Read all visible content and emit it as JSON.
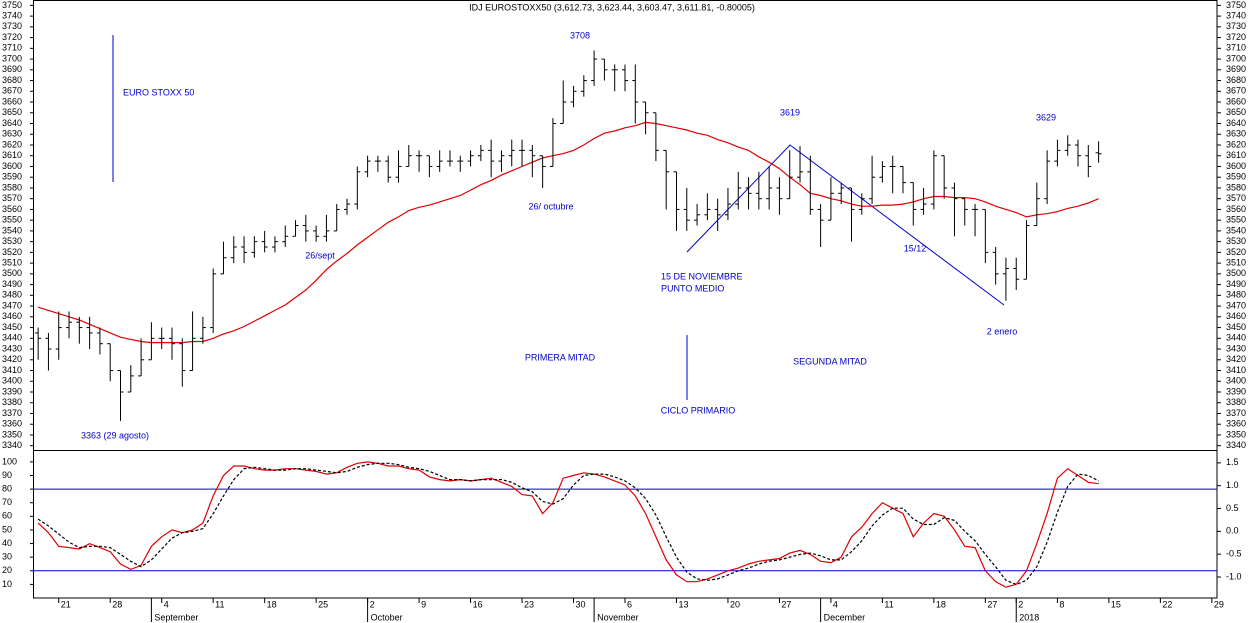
{
  "chart_data": [
    {
      "type": "ohlc",
      "title": "IDJ EUROSTOXX50 (3,612.73, 3,623.44, 3,603.47, 3,611.81, -0.80005)",
      "categories": [
        null,
        null,
        "21",
        null,
        null,
        null,
        null,
        "28",
        null,
        null,
        null,
        null,
        "4",
        null,
        null,
        null,
        null,
        "11",
        null,
        null,
        null,
        null,
        "18",
        null,
        null,
        null,
        null,
        "25",
        null,
        null,
        null,
        null,
        "2",
        null,
        null,
        null,
        null,
        "9",
        null,
        null,
        null,
        null,
        "16",
        null,
        null,
        null,
        null,
        "23",
        null,
        null,
        null,
        null,
        "30",
        null,
        null,
        null,
        null,
        "6",
        null,
        null,
        null,
        null,
        "13",
        null,
        null,
        null,
        null,
        "20",
        null,
        null,
        null,
        null,
        "27",
        null,
        null,
        null,
        null,
        "4",
        null,
        null,
        null,
        null,
        "11",
        null,
        null,
        null,
        null,
        "18",
        null,
        null,
        null,
        null,
        "27",
        null,
        null,
        "2",
        null,
        null,
        null,
        "8",
        null,
        null,
        null,
        null,
        "15",
        null,
        null,
        null,
        null,
        "22",
        null,
        null,
        null,
        null,
        "29"
      ],
      "month_labels": [
        null,
        null,
        null,
        null,
        null,
        null,
        null,
        null,
        null,
        null,
        null,
        "September",
        null,
        null,
        null,
        null,
        null,
        null,
        null,
        null,
        null,
        null,
        null,
        null,
        null,
        null,
        null,
        null,
        null,
        null,
        null,
        null,
        "October",
        null,
        null,
        null,
        null,
        null,
        null,
        null,
        null,
        null,
        null,
        null,
        null,
        null,
        null,
        null,
        null,
        null,
        null,
        null,
        null,
        null,
        "November",
        null,
        null,
        null,
        null,
        null,
        null,
        null,
        null,
        null,
        null,
        null,
        null,
        null,
        null,
        null,
        null,
        null,
        null,
        null,
        null,
        null,
        "December",
        null,
        null,
        null,
        null,
        null,
        null,
        null,
        null,
        null,
        null,
        null,
        null,
        null,
        null,
        null,
        null,
        null,
        null,
        "2018",
        null,
        null,
        null,
        null,
        null,
        null,
        null,
        null,
        null,
        null,
        null,
        null,
        null,
        null,
        null,
        null,
        null,
        null,
        null
      ],
      "open": [
        3445,
        3440,
        3430,
        3450,
        3455,
        3450,
        3445,
        3435,
        3410,
        3390,
        3405,
        3420,
        3440,
        3440,
        3435,
        3410,
        3440,
        3450,
        3500,
        3515,
        3525,
        3520,
        3530,
        3525,
        3530,
        3535,
        3545,
        3540,
        3535,
        3540,
        3560,
        3565,
        3595,
        3605,
        3605,
        3590,
        3600,
        3610,
        3610,
        3600,
        3605,
        3605,
        3605,
        3610,
        3615,
        3605,
        3610,
        3615,
        3615,
        3610,
        3600,
        3640,
        3660,
        3670,
        3680,
        3700,
        3690,
        3690,
        3680,
        3660,
        3650,
        3615,
        3595,
        3560,
        3550,
        3555,
        3560,
        3555,
        3565,
        3580,
        3575,
        3570,
        3580,
        3570,
        3590,
        3595,
        3560,
        3550,
        3575,
        3580,
        3560,
        3570,
        3590,
        3600,
        3600,
        3585,
        3560,
        3565,
        3610,
        3580,
        3570,
        3560,
        3560,
        3520,
        3500,
        3505,
        3495,
        3545,
        3570,
        3605,
        3615,
        3620,
        3610,
        3612.73,
        null,
        null,
        null,
        null,
        null,
        null,
        null,
        null,
        null,
        null,
        null
      ],
      "high": [
        3450,
        3445,
        3465,
        3465,
        3460,
        3460,
        3450,
        3435,
        3410,
        3415,
        3440,
        3455,
        3450,
        3450,
        3440,
        3465,
        3460,
        3505,
        3530,
        3535,
        3535,
        3535,
        3540,
        3535,
        3545,
        3550,
        3555,
        3545,
        3555,
        3565,
        3570,
        3600,
        3610,
        3610,
        3610,
        3615,
        3620,
        3615,
        3610,
        3615,
        3615,
        3610,
        3615,
        3620,
        3625,
        3615,
        3625,
        3625,
        3620,
        3610,
        3645,
        3680,
        3675,
        3685,
        3708,
        3700,
        3695,
        3695,
        3695,
        3660,
        3650,
        3615,
        3595,
        3580,
        3565,
        3575,
        3570,
        3580,
        3595,
        3590,
        3595,
        3600,
        3590,
        3615,
        3619,
        3610,
        3565,
        3590,
        3585,
        3580,
        3575,
        3610,
        3605,
        3610,
        3600,
        3585,
        3580,
        3615,
        3610,
        3585,
        3570,
        3565,
        3560,
        3525,
        3515,
        3515,
        3550,
        3585,
        3615,
        3625,
        3629,
        3625,
        3620,
        3623.44,
        null,
        null,
        null,
        null,
        null,
        null,
        null,
        null,
        null,
        null,
        null
      ],
      "low": [
        3420,
        3410,
        3420,
        3440,
        3435,
        3430,
        3425,
        3400,
        3363,
        3390,
        3405,
        3420,
        3430,
        3420,
        3395,
        3410,
        3435,
        3445,
        3500,
        3510,
        3510,
        3515,
        3520,
        3520,
        3525,
        3535,
        3530,
        3530,
        3530,
        3540,
        3555,
        3560,
        3590,
        3595,
        3585,
        3585,
        3600,
        3595,
        3590,
        3595,
        3600,
        3595,
        3600,
        3605,
        3590,
        3595,
        3600,
        3600,
        3590,
        3580,
        3600,
        3640,
        3655,
        3665,
        3675,
        3680,
        3670,
        3670,
        3640,
        3630,
        3605,
        3560,
        3540,
        3540,
        3545,
        3550,
        3540,
        3550,
        3560,
        3560,
        3560,
        3560,
        3555,
        3570,
        3585,
        3555,
        3525,
        3550,
        3565,
        3530,
        3555,
        3565,
        3585,
        3575,
        3575,
        3545,
        3555,
        3560,
        3570,
        3535,
        3545,
        3535,
        3510,
        3490,
        3475,
        3485,
        3495,
        3545,
        3565,
        3600,
        3610,
        3600,
        3590,
        3603.47,
        null,
        null,
        null,
        null,
        null,
        null,
        null,
        null,
        null,
        null,
        null
      ],
      "close": [
        3440,
        3430,
        3450,
        3455,
        3450,
        3445,
        3435,
        3410,
        3390,
        3405,
        3420,
        3440,
        3440,
        3435,
        3410,
        3440,
        3450,
        3500,
        3515,
        3525,
        3520,
        3530,
        3525,
        3530,
        3535,
        3545,
        3540,
        3535,
        3540,
        3560,
        3565,
        3595,
        3605,
        3605,
        3590,
        3600,
        3610,
        3610,
        3600,
        3605,
        3605,
        3605,
        3610,
        3615,
        3605,
        3610,
        3615,
        3615,
        3610,
        3600,
        3640,
        3660,
        3670,
        3680,
        3700,
        3690,
        3690,
        3680,
        3660,
        3650,
        3615,
        3595,
        3560,
        3550,
        3555,
        3560,
        3555,
        3565,
        3580,
        3575,
        3570,
        3580,
        3570,
        3590,
        3595,
        3560,
        3550,
        3575,
        3580,
        3560,
        3570,
        3590,
        3600,
        3600,
        3585,
        3560,
        3565,
        3610,
        3580,
        3570,
        3560,
        3560,
        3520,
        3500,
        3505,
        3495,
        3545,
        3570,
        3605,
        3615,
        3620,
        3610,
        3600,
        3611.81,
        null,
        null,
        null,
        null,
        null,
        null,
        null,
        null,
        null,
        null,
        null
      ],
      "bar_color": "#000000",
      "ma": {
        "color": "#e00000",
        "values": [
          3469,
          3466,
          3463,
          3460,
          3457,
          3453,
          3449,
          3445,
          3441,
          3439,
          3437,
          3436,
          3436,
          3436,
          3436,
          3437,
          3437,
          3440,
          3444,
          3447,
          3451,
          3456,
          3461,
          3466,
          3471,
          3478,
          3485,
          3494,
          3504,
          3512,
          3519,
          3527,
          3534,
          3541,
          3548,
          3553,
          3559,
          3562,
          3564,
          3567,
          3570,
          3573,
          3578,
          3583,
          3587,
          3592,
          3596,
          3600,
          3604,
          3608,
          3610,
          3612,
          3615,
          3620,
          3626,
          3631,
          3633,
          3636,
          3638,
          3641,
          3640,
          3638,
          3636,
          3634,
          3631,
          3629,
          3625,
          3622,
          3618,
          3615,
          3609,
          3604,
          3598,
          3590,
          3583,
          3575,
          3573,
          3570,
          3568,
          3565,
          3563,
          3563,
          3564,
          3564,
          3565,
          3567,
          3570,
          3572,
          3572,
          3571,
          3571,
          3570,
          3567,
          3563,
          3560,
          3557,
          3553,
          3555,
          3556,
          3558,
          3561,
          3563,
          3566,
          3570,
          null,
          null,
          null,
          null,
          null,
          null,
          null,
          null,
          null,
          null,
          null
        ]
      },
      "ylim": [
        3336,
        3755
      ],
      "yticks": [
        3340,
        3350,
        3360,
        3370,
        3380,
        3390,
        3400,
        3410,
        3420,
        3430,
        3440,
        3450,
        3460,
        3470,
        3480,
        3490,
        3500,
        3510,
        3520,
        3530,
        3540,
        3550,
        3560,
        3570,
        3580,
        3590,
        3600,
        3610,
        3620,
        3630,
        3640,
        3650,
        3660,
        3670,
        3680,
        3690,
        3700,
        3710,
        3720,
        3730,
        3740,
        3750
      ],
      "annotations": [
        "EURO STOXX 50",
        "3708",
        "3619",
        "3629",
        "26/ octubre",
        "26/sept",
        "15 DE NOVIEMBRE",
        "PUNTO MEDIO",
        "15/12",
        "2 enero",
        "PRIMERA MITAD",
        "SEGUNDA MITAD",
        "CICLO PRIMARIO",
        "3363 (29 agosto)"
      ],
      "annotation_color": "#0000cc"
    },
    {
      "type": "line",
      "series": [
        {
          "color": "#e00000",
          "dashed": false,
          "values": [
            55,
            48,
            38,
            37,
            36,
            40,
            37,
            34,
            25,
            21,
            24,
            38,
            45,
            50,
            48,
            50,
            55,
            75,
            90,
            97,
            97,
            95,
            94,
            94,
            95,
            95,
            94,
            93,
            91,
            92,
            96,
            99,
            100,
            99,
            97,
            97,
            95,
            94,
            89,
            87,
            86,
            87,
            86,
            87,
            88,
            85,
            82,
            76,
            75,
            62,
            70,
            88,
            90,
            92,
            91,
            89,
            86,
            83,
            75,
            62,
            45,
            28,
            17,
            12,
            12,
            14,
            17,
            20,
            22,
            25,
            27,
            28,
            29,
            33,
            35,
            32,
            27,
            26,
            30,
            45,
            52,
            62,
            70,
            66,
            62,
            45,
            55,
            62,
            60,
            50,
            38,
            37,
            20,
            12,
            8,
            10,
            20,
            40,
            62,
            88,
            95,
            90,
            85,
            84,
            null,
            null,
            null,
            null,
            null,
            null,
            null,
            null,
            null,
            null,
            null
          ]
        },
        {
          "color": "#000000",
          "dashed": true,
          "values": [
            58,
            53,
            47,
            41,
            37,
            38,
            38,
            37,
            32,
            27,
            23,
            28,
            36,
            44,
            48,
            49,
            51,
            62,
            75,
            87,
            95,
            96,
            95,
            94,
            94,
            95,
            95,
            94,
            93,
            92,
            93,
            96,
            98,
            99,
            99,
            98,
            96,
            95,
            93,
            90,
            87,
            87,
            86,
            87,
            87,
            87,
            85,
            81,
            78,
            71,
            69,
            73,
            83,
            90,
            91,
            91,
            89,
            86,
            81,
            73,
            61,
            45,
            30,
            19,
            14,
            13,
            14,
            17,
            20,
            22,
            25,
            27,
            28,
            30,
            32,
            33,
            31,
            28,
            28,
            34,
            42,
            53,
            61,
            66,
            66,
            58,
            54,
            54,
            59,
            57,
            49,
            42,
            32,
            23,
            13,
            10,
            13,
            23,
            41,
            63,
            82,
            91,
            90,
            86,
            null,
            null,
            null,
            null,
            null,
            null,
            null,
            null,
            null,
            null,
            null
          ]
        }
      ],
      "ylim": [
        0,
        108
      ],
      "yticks": [
        10,
        20,
        30,
        40,
        50,
        60,
        70,
        80,
        90,
        100
      ],
      "y2lim": [
        -1.46,
        1.76
      ],
      "y2ticks": [
        1.5,
        {
          "value": 1,
          "label": "1.0"
        },
        0.5,
        {
          "value": 0,
          "label": "0.0"
        },
        -0.5,
        {
          "value": -1,
          "label": "-1.0"
        }
      ],
      "levels": [
        80,
        20
      ],
      "level_color": "#0000cc"
    }
  ]
}
